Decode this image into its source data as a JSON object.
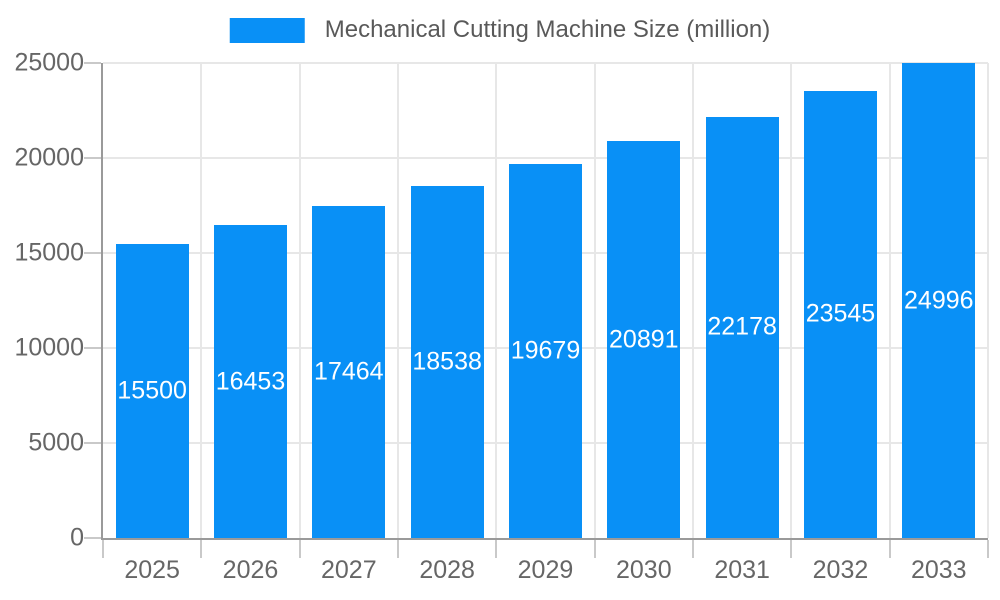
{
  "chart_data": {
    "type": "bar",
    "title": "Mechanical Cutting Machine Size (million)",
    "series": [
      {
        "name": "Mechanical Cutting Machine Size (million)",
        "values": [
          15500,
          16453,
          17464,
          18538,
          19679,
          20891,
          22178,
          23545,
          24996
        ]
      }
    ],
    "categories": [
      "2025",
      "2026",
      "2027",
      "2028",
      "2029",
      "2030",
      "2031",
      "2032",
      "2033"
    ],
    "values": [
      15500,
      16453,
      17464,
      18538,
      19679,
      20891,
      22178,
      23545,
      24996
    ],
    "xlabel": "",
    "ylabel": "",
    "ylim": [
      0,
      25000
    ],
    "yticks": [
      0,
      5000,
      10000,
      15000,
      20000,
      25000
    ],
    "grid": "on",
    "legend_position": "top-center",
    "value_labels": "inside-center-white",
    "colors": {
      "bar": "#0990f6",
      "grid": "#e7e7e7",
      "axis_line": "#9a9a9a",
      "tick": "#c9c9c9",
      "axis_text": "#666666",
      "legend_text": "#595959",
      "value_text": "#ffffff",
      "background": "#ffffff"
    }
  }
}
